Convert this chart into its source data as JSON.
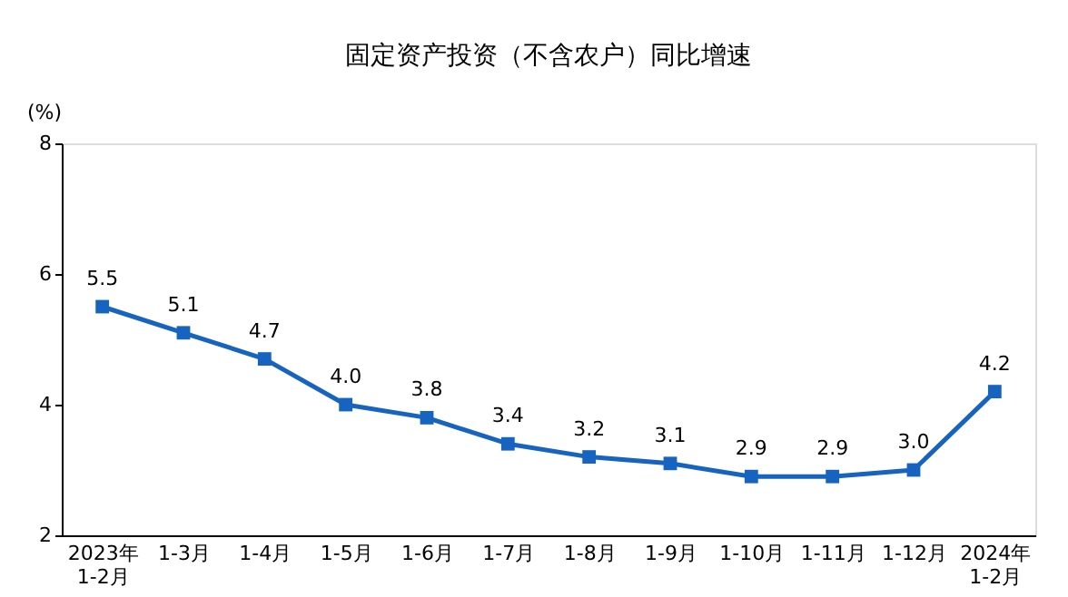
{
  "chart_data": {
    "type": "line",
    "title": "固定资产投资（不含农户）同比增速",
    "ylabel": "(%)",
    "categories": [
      "2023年\n1-2月",
      "1-3月",
      "1-4月",
      "1-5月",
      "1-6月",
      "1-7月",
      "1-8月",
      "1-9月",
      "1-10月",
      "1-11月",
      "1-12月",
      "2024年\n1-2月"
    ],
    "series": [
      {
        "color": "#1764c0",
        "values": [
          5.5,
          5.1,
          4.7,
          4.0,
          3.8,
          3.4,
          3.2,
          3.1,
          2.9,
          2.9,
          3.0,
          4.2
        ],
        "value_labels": [
          "5.5",
          "5.1",
          "4.7",
          "4.0",
          "3.8",
          "3.4",
          "3.2",
          "3.1",
          "2.9",
          "2.9",
          "3.0",
          "4.2"
        ]
      }
    ],
    "ylim": [
      2,
      8
    ],
    "yticks": [
      2,
      4,
      6,
      8
    ],
    "grid": false,
    "marker": "square",
    "line_style": "solid"
  }
}
